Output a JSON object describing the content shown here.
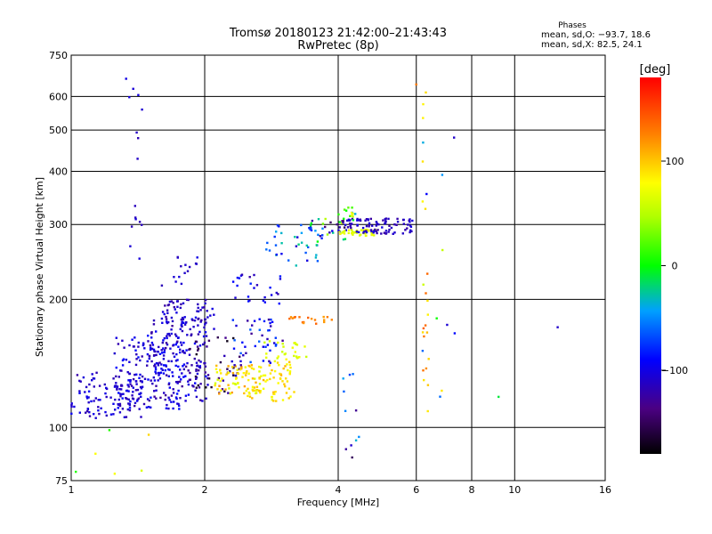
{
  "chart_data": {
    "type": "scatter",
    "title": "Tromsø 20180123 21:42:00–21:43:43",
    "subtitle": "RwPretec (8p)",
    "xlabel": "Frequency [MHz]",
    "ylabel": "Stationary phase Virtual Height [km]",
    "x_scale": "log",
    "y_scale": "log",
    "xlim": [
      1,
      16
    ],
    "ylim": [
      75,
      750
    ],
    "x_ticks": [
      1,
      2,
      4,
      6,
      8,
      10,
      16
    ],
    "x_tick_labels": [
      "1",
      "2",
      "4",
      "6",
      "8",
      "10",
      "16"
    ],
    "x_grid": [
      1,
      2,
      4,
      6,
      8,
      10,
      16
    ],
    "y_ticks": [
      75,
      100,
      200,
      300,
      400,
      500,
      600,
      750
    ],
    "y_tick_labels": [
      "75",
      "100",
      "200",
      "300",
      "400",
      "500",
      "600",
      "750"
    ],
    "y_grid": [
      100,
      200,
      300,
      400,
      500,
      600
    ],
    "grid": true,
    "stats": {
      "heading": "Phases",
      "o_line": "mean, sd,O: −93.7, 18.6",
      "x_line": "mean, sd,X:  82.5, 24.1"
    },
    "colorbar": {
      "label": "[deg]",
      "range": [
        -180,
        180
      ],
      "ticks": [
        100,
        0,
        -100
      ],
      "tick_labels": [
        "100",
        "0",
        "−100"
      ]
    },
    "clusters": [
      {
        "f": [
          1.0,
          1.45
        ],
        "h": [
          105,
          135
        ],
        "phase": [
          -125,
          -95
        ],
        "n": 110
      },
      {
        "f": [
          1.25,
          1.8
        ],
        "h": [
          110,
          165
        ],
        "phase": [
          -120,
          -85
        ],
        "n": 150
      },
      {
        "f": [
          1.5,
          2.05
        ],
        "h": [
          115,
          185
        ],
        "phase": [
          -130,
          -90
        ],
        "n": 160
      },
      {
        "f": [
          1.6,
          2.1
        ],
        "h": [
          165,
          200
        ],
        "phase": [
          -125,
          -100
        ],
        "n": 60
      },
      {
        "f": [
          1.6,
          2.0
        ],
        "h": [
          215,
          255
        ],
        "phase": [
          -120,
          -100
        ],
        "n": 15
      },
      {
        "f": [
          1.85,
          2.4
        ],
        "h": [
          120,
          165
        ],
        "phase": [
          -175,
          -110
        ],
        "n": 40
      },
      {
        "f": [
          2.1,
          2.7
        ],
        "h": [
          120,
          140
        ],
        "phase": [
          60,
          120
        ],
        "n": 70
      },
      {
        "f": [
          2.5,
          3.2
        ],
        "h": [
          115,
          145
        ],
        "phase": [
          70,
          110
        ],
        "n": 70
      },
      {
        "f": [
          2.3,
          3.0
        ],
        "h": [
          140,
          180
        ],
        "phase": [
          -130,
          -60
        ],
        "n": 45
      },
      {
        "f": [
          2.3,
          3.0
        ],
        "h": [
          195,
          230
        ],
        "phase": [
          -130,
          -80
        ],
        "n": 25
      },
      {
        "f": [
          2.7,
          3.4
        ],
        "h": [
          145,
          160
        ],
        "phase": [
          55,
          75
        ],
        "n": 25
      },
      {
        "f": [
          3.1,
          3.9
        ],
        "h": [
          175,
          182
        ],
        "phase": [
          115,
          140
        ],
        "n": 18
      },
      {
        "f": [
          2.7,
          3.6
        ],
        "h": [
          240,
          300
        ],
        "phase": [
          -110,
          -20
        ],
        "n": 35
      },
      {
        "f": [
          3.4,
          4.2
        ],
        "h": [
          270,
          310
        ],
        "phase": [
          -160,
          80
        ],
        "n": 30
      },
      {
        "f": [
          4.0,
          4.9
        ],
        "h": [
          282,
          292
        ],
        "phase": [
          60,
          75
        ],
        "n": 40
      },
      {
        "f": [
          4.0,
          5.9
        ],
        "h": [
          285,
          310
        ],
        "phase": [
          -125,
          -100
        ],
        "n": 90
      },
      {
        "f": [
          4.0,
          4.4
        ],
        "h": [
          305,
          330
        ],
        "phase": [
          -40,
          80
        ],
        "n": 15
      },
      {
        "f": [
          1.35,
          1.45
        ],
        "h": [
          240,
          650
        ],
        "phase": [
          -120,
          -100
        ],
        "n": 14
      },
      {
        "f": [
          6.2,
          6.4
        ],
        "h": [
          100,
          640
        ],
        "phase": [
          80,
          140
        ],
        "n": 20
      },
      {
        "f": [
          4.0,
          4.5
        ],
        "h": [
          85,
          140
        ],
        "phase": [
          -140,
          -30
        ],
        "n": 10
      },
      {
        "f": [
          1.0,
          2.0
        ],
        "h": [
          75,
          100
        ],
        "phase": [
          -100,
          100
        ],
        "n": 6
      },
      {
        "f": [
          6.0,
          7.5
        ],
        "h": [
          100,
          500
        ],
        "phase": [
          -120,
          100
        ],
        "n": 12
      }
    ],
    "singles": [
      {
        "f": 12.5,
        "h": 172,
        "phase": -110
      },
      {
        "f": 9.2,
        "h": 118,
        "phase": -10
      },
      {
        "f": 7.3,
        "h": 480,
        "phase": -110
      },
      {
        "f": 1.33,
        "h": 660,
        "phase": -100
      },
      {
        "f": 1.38,
        "h": 625,
        "phase": -105
      },
      {
        "f": 6.0,
        "h": 640,
        "phase": 130
      },
      {
        "f": 4.3,
        "h": 85,
        "phase": -150
      }
    ]
  }
}
